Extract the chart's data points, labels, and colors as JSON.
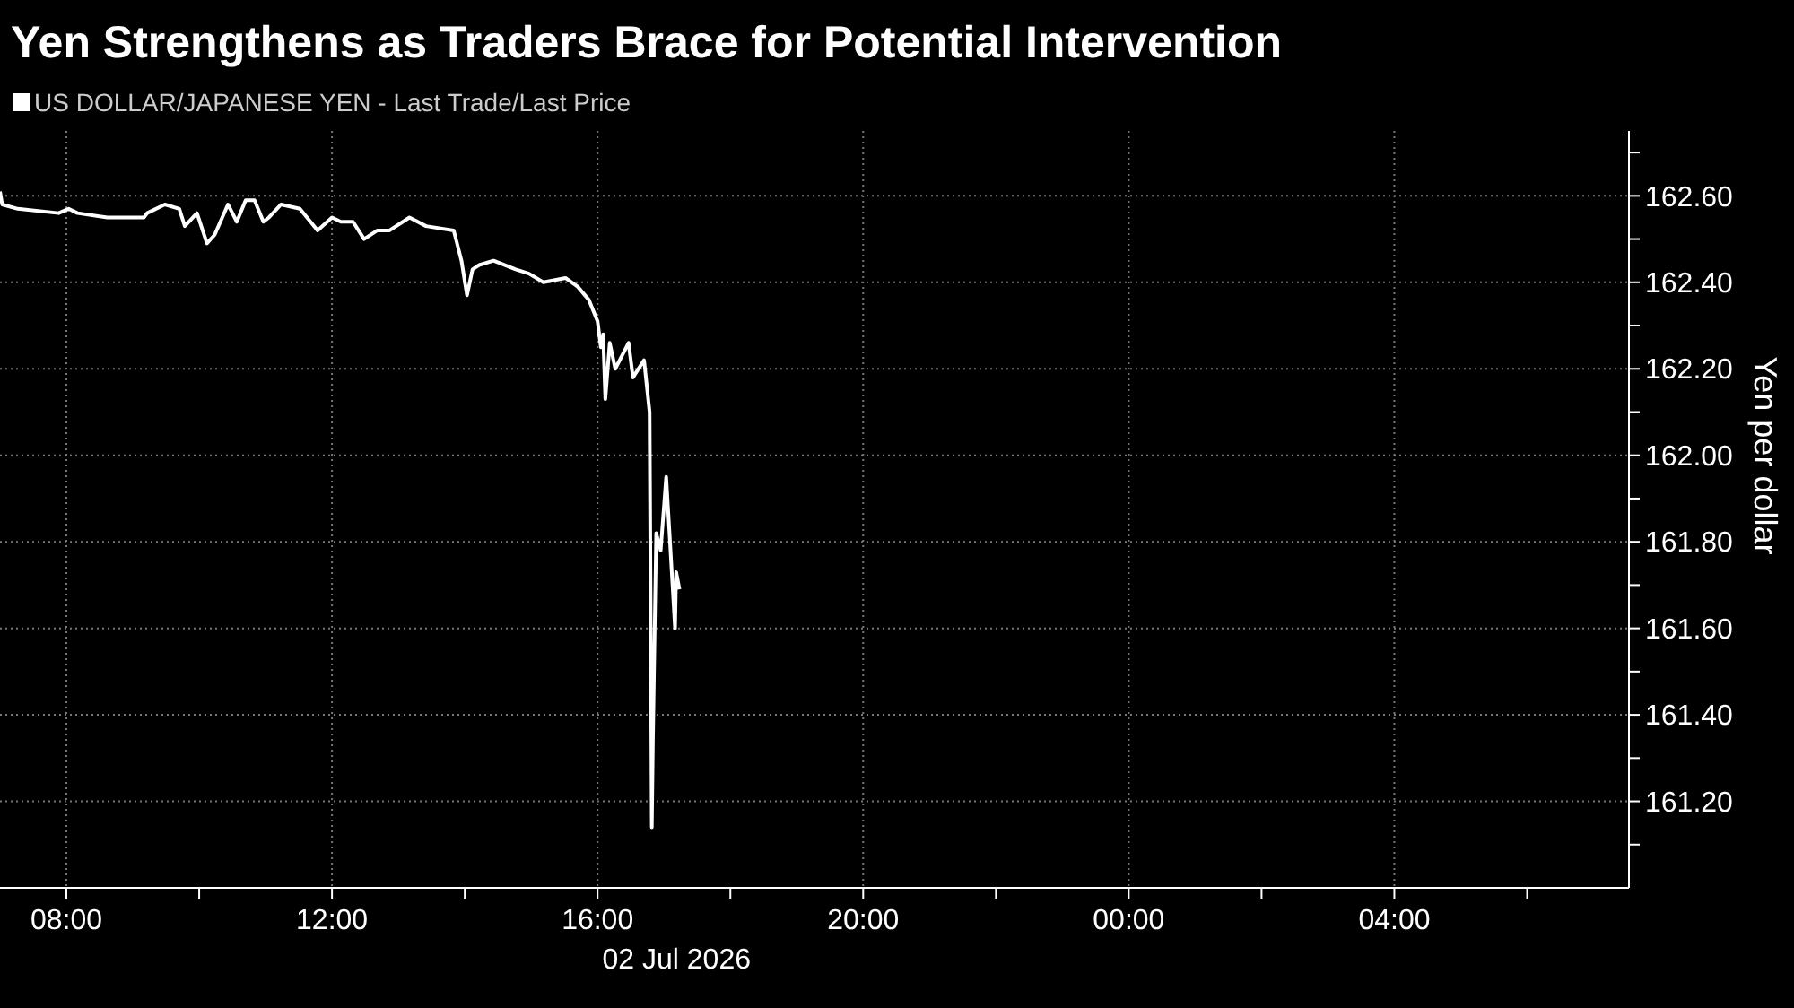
{
  "chart_data": {
    "type": "line",
    "title": "Yen Strengthens as Traders Brace for Potential Intervention",
    "xlabel": "02 Jul 2026",
    "ylabel": "Yen per dollar",
    "legend": "top left",
    "grid": true,
    "xlim": [
      "2026-07-02T07:00",
      "2026-07-03T07:32"
    ],
    "xticks": [
      {
        "value": "2026-07-02T08:00",
        "label": "08:00"
      },
      {
        "value": "2026-07-02T10:00",
        "label": null
      },
      {
        "value": "2026-07-02T12:00",
        "label": "12:00"
      },
      {
        "value": "2026-07-02T14:00",
        "label": null
      },
      {
        "value": "2026-07-02T16:00",
        "label": "16:00"
      },
      {
        "value": "2026-07-02T18:00",
        "label": null
      },
      {
        "value": "2026-07-02T20:00",
        "label": "20:00"
      },
      {
        "value": "2026-07-02T22:00",
        "label": null
      },
      {
        "value": "2026-07-03T00:00",
        "label": "00:00"
      },
      {
        "value": "2026-07-03T02:00",
        "label": null
      },
      {
        "value": "2026-07-03T04:00",
        "label": "04:00"
      },
      {
        "value": "2026-07-03T06:00",
        "label": null
      }
    ],
    "ylim": [
      161.0,
      162.75
    ],
    "yticks": [
      {
        "value": 161.1,
        "label": null
      },
      {
        "value": 161.2,
        "label": "161.20"
      },
      {
        "value": 161.3,
        "label": null
      },
      {
        "value": 161.4,
        "label": "161.40"
      },
      {
        "value": 161.5,
        "label": null
      },
      {
        "value": 161.6,
        "label": "161.60"
      },
      {
        "value": 161.7,
        "label": null
      },
      {
        "value": 161.8,
        "label": "161.80"
      },
      {
        "value": 161.9,
        "label": null
      },
      {
        "value": 162.0,
        "label": "162.00"
      },
      {
        "value": 162.1,
        "label": null
      },
      {
        "value": 162.2,
        "label": "162.20"
      },
      {
        "value": 162.3,
        "label": null
      },
      {
        "value": 162.4,
        "label": "162.40"
      },
      {
        "value": 162.5,
        "label": null
      },
      {
        "value": 162.6,
        "label": "162.60"
      },
      {
        "value": 162.7,
        "label": null
      }
    ],
    "series": [
      {
        "name": "US DOLLAR/JAPANESE YEN - Last Trade/Last Price",
        "color": "#ffffff",
        "x": [
          "2026-07-02T07:00",
          "2026-07-02T07:02",
          "2026-07-02T07:16",
          "2026-07-02T07:53",
          "2026-07-02T08:02",
          "2026-07-02T08:10",
          "2026-07-02T08:37",
          "2026-07-02T09:10",
          "2026-07-02T09:13",
          "2026-07-02T09:29",
          "2026-07-02T09:42",
          "2026-07-02T09:47",
          "2026-07-02T09:58",
          "2026-07-02T10:07",
          "2026-07-02T10:14",
          "2026-07-02T10:26",
          "2026-07-02T10:34",
          "2026-07-02T10:42",
          "2026-07-02T10:50",
          "2026-07-02T10:58",
          "2026-07-02T11:03",
          "2026-07-02T11:14",
          "2026-07-02T11:31",
          "2026-07-02T11:47",
          "2026-07-02T12:00",
          "2026-07-02T12:08",
          "2026-07-02T12:19",
          "2026-07-02T12:29",
          "2026-07-02T12:41",
          "2026-07-02T12:52",
          "2026-07-02T13:10",
          "2026-07-02T13:25",
          "2026-07-02T13:50",
          "2026-07-02T13:57",
          "2026-07-02T14:02",
          "2026-07-02T14:07",
          "2026-07-02T14:13",
          "2026-07-02T14:26",
          "2026-07-02T14:46",
          "2026-07-02T14:58",
          "2026-07-02T15:11",
          "2026-07-02T15:31",
          "2026-07-02T15:42",
          "2026-07-02T15:52",
          "2026-07-02T16:00",
          "2026-07-02T16:03",
          "2026-07-02T16:05",
          "2026-07-02T16:07",
          "2026-07-02T16:11",
          "2026-07-02T16:16",
          "2026-07-02T16:28",
          "2026-07-02T16:32",
          "2026-07-02T16:42",
          "2026-07-02T16:47",
          "2026-07-02T16:49",
          "2026-07-02T16:50",
          "2026-07-02T16:53",
          "2026-07-02T16:57",
          "2026-07-02T17:02",
          "2026-07-02T17:05",
          "2026-07-02T17:10",
          "2026-07-02T17:11",
          "2026-07-02T17:14"
        ],
        "values": [
          162.61,
          162.58,
          162.57,
          162.56,
          162.57,
          162.56,
          162.55,
          162.55,
          162.56,
          162.58,
          162.57,
          162.53,
          162.56,
          162.49,
          162.51,
          162.58,
          162.54,
          162.59,
          162.59,
          162.54,
          162.55,
          162.58,
          162.57,
          162.52,
          162.55,
          162.54,
          162.54,
          162.5,
          162.52,
          162.52,
          162.55,
          162.53,
          162.52,
          162.45,
          162.37,
          162.43,
          162.44,
          162.45,
          162.43,
          162.42,
          162.4,
          162.41,
          162.39,
          162.36,
          162.31,
          162.25,
          162.28,
          162.13,
          162.26,
          162.2,
          162.26,
          162.18,
          162.22,
          162.1,
          161.14,
          161.34,
          161.82,
          161.78,
          161.95,
          161.82,
          161.6,
          161.73,
          161.69
        ]
      }
    ]
  }
}
